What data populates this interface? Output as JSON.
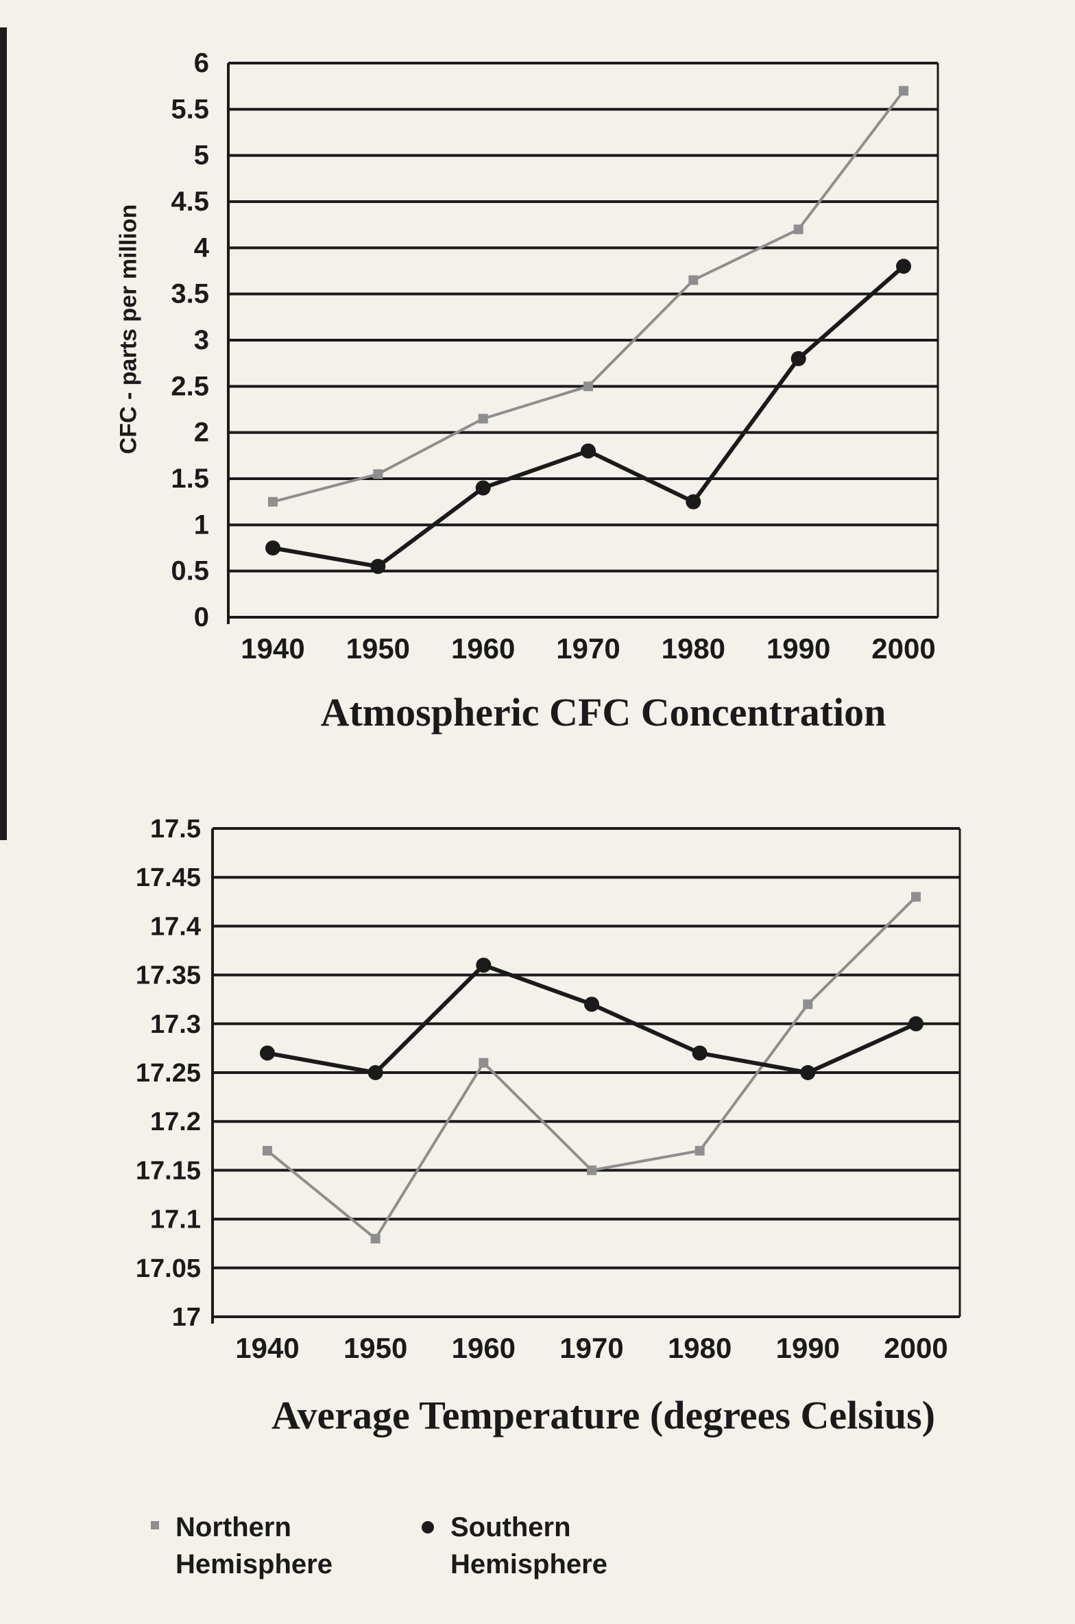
{
  "chart_data": [
    {
      "type": "line",
      "title": "Atmospheric CFC Concentration",
      "ylabel": "CFC - parts per million",
      "xlabel": "",
      "x": [
        1940,
        1950,
        1960,
        1970,
        1980,
        1990,
        2000
      ],
      "x_tick_labels": [
        "1940",
        "1950",
        "1960",
        "1970",
        "1980",
        "1990",
        "2000"
      ],
      "y_tick_labels": [
        "0",
        "0.5",
        "1",
        "1.5",
        "2",
        "2.5",
        "3",
        "3.5",
        "4",
        "4.5",
        "5",
        "5.5",
        "6"
      ],
      "ylim": [
        0,
        6
      ],
      "grid": true,
      "series": [
        {
          "name": "Northern Hemisphere",
          "color": "#8e8e8e",
          "marker": "square",
          "values": [
            1.25,
            1.55,
            2.15,
            2.5,
            3.65,
            4.2,
            5.7
          ]
        },
        {
          "name": "Southern Hemisphere",
          "color": "#1a1a1a",
          "marker": "circle",
          "values": [
            0.75,
            0.55,
            1.4,
            1.8,
            1.25,
            2.8,
            3.8
          ]
        }
      ]
    },
    {
      "type": "line",
      "title": "Average Temperature (degrees Celsius)",
      "ylabel": "",
      "xlabel": "",
      "x": [
        1940,
        1950,
        1960,
        1970,
        1980,
        1990,
        2000
      ],
      "x_tick_labels": [
        "1940",
        "1950",
        "1960",
        "1970",
        "1980",
        "1990",
        "2000"
      ],
      "y_tick_labels": [
        "17",
        "17.05",
        "17.1",
        "17.15",
        "17.2",
        "17.25",
        "17.3",
        "17.35",
        "17.4",
        "17.45",
        "17.5"
      ],
      "ylim": [
        17,
        17.5
      ],
      "grid": true,
      "series": [
        {
          "name": "Northern Hemisphere",
          "color": "#8e8e8e",
          "marker": "square",
          "values": [
            17.17,
            17.08,
            17.26,
            17.15,
            17.17,
            17.32,
            17.43
          ]
        },
        {
          "name": "Southern Hemisphere",
          "color": "#1a1a1a",
          "marker": "circle",
          "values": [
            17.27,
            17.25,
            17.36,
            17.32,
            17.27,
            17.25,
            17.3
          ]
        }
      ]
    }
  ],
  "legend": {
    "placement": "bottom-left",
    "items": [
      {
        "label": "Northern Hemisphere",
        "line1": "Northern",
        "line2": "Hemisphere",
        "marker": "square",
        "color": "#8e8e8e"
      },
      {
        "label": "Southern Hemisphere",
        "line1": "Southern",
        "line2": "Hemisphere",
        "marker": "circle",
        "color": "#1a1a1a"
      }
    ]
  }
}
